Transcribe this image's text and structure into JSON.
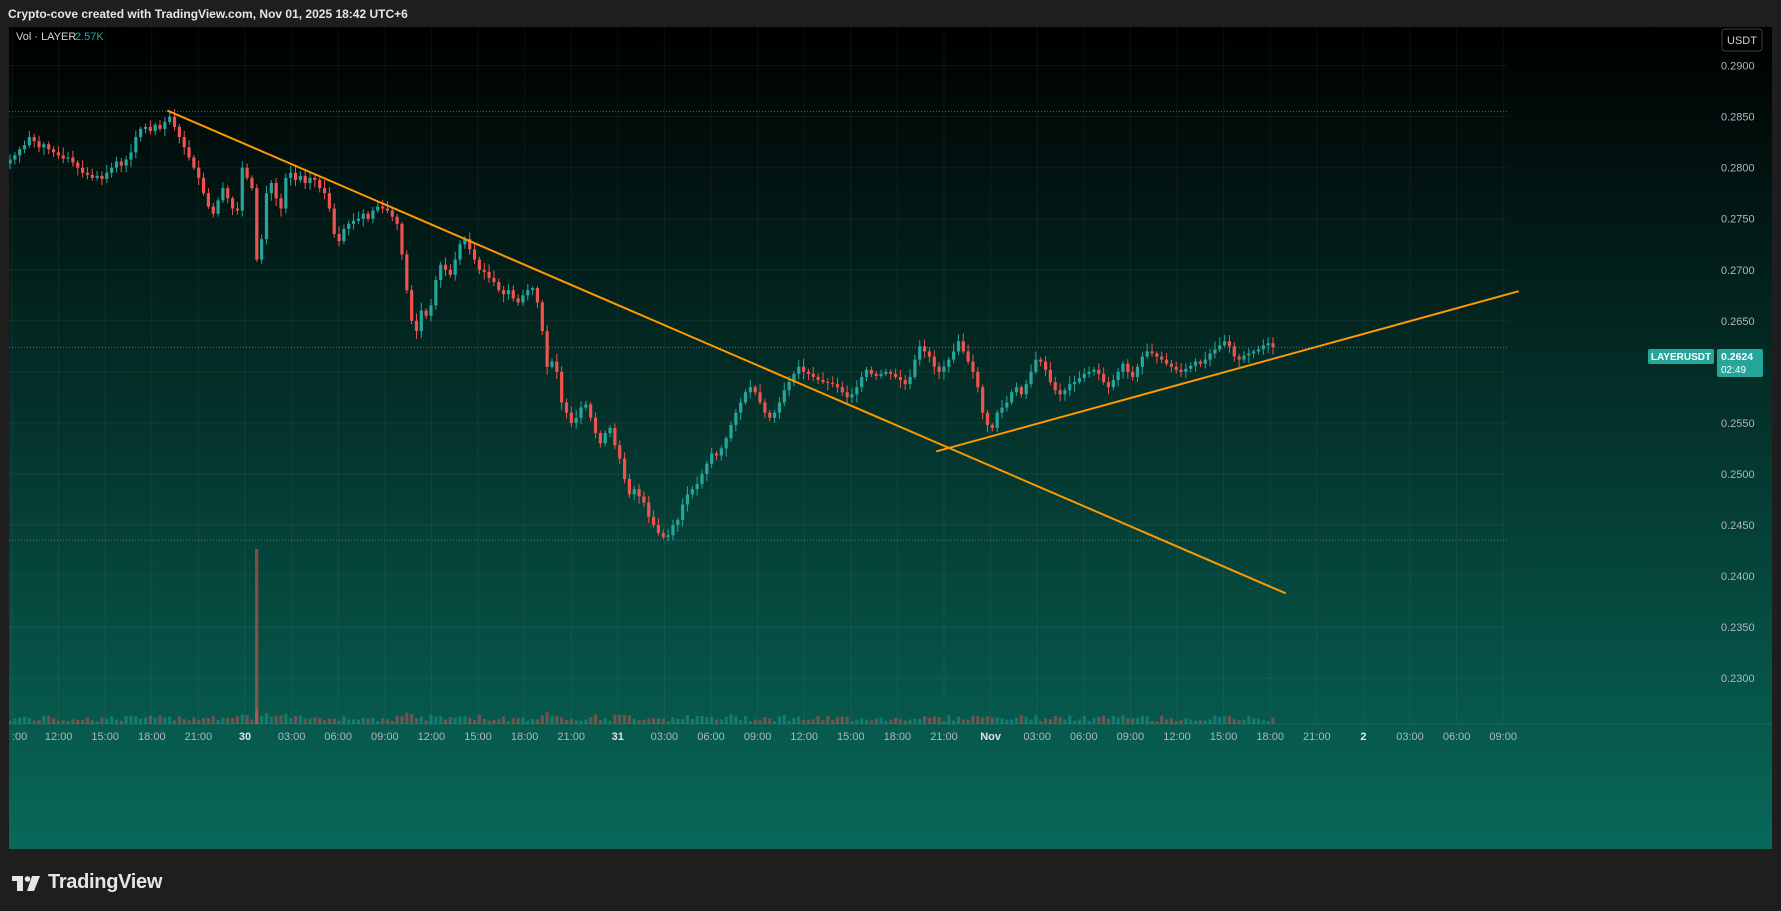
{
  "header": {
    "attribution": "Crypto-cove created with TradingView.com, Nov 01, 2025 18:42 UTC+6"
  },
  "legend": {
    "label": "Vol · LAYER",
    "value": "2.57K",
    "value_color": "#26a69a"
  },
  "currency_button": "USDT",
  "symbol_badge": {
    "symbol": "LAYERUSDT",
    "price": "0.2624",
    "countdown": "02:49",
    "color": "#26a69a"
  },
  "footer": {
    "brand": "TradingView"
  },
  "colors": {
    "up": "#26a69a",
    "down": "#ef5350",
    "trendline": "#ff9800",
    "bg_top": "#000000",
    "bg_bottom": "#08695a"
  },
  "icons": [
    "tradingview-logo-icon"
  ],
  "chart_data": {
    "type": "candlestick",
    "symbol": "LAYERUSDT",
    "interval_minutes": 15,
    "ylim": [
      0.2255,
      0.293
    ],
    "y_ticks": [
      "0.2900",
      "0.2850",
      "0.2800",
      "0.2750",
      "0.2700",
      "0.2650",
      "0.2600",
      "0.2550",
      "0.2500",
      "0.2450",
      "0.2400",
      "0.2350",
      "0.2300"
    ],
    "x_ticks": [
      ":00",
      "12:00",
      "15:00",
      "18:00",
      "21:00",
      "30",
      "03:00",
      "06:00",
      "09:00",
      "12:00",
      "15:00",
      "18:00",
      "21:00",
      "31",
      "03:00",
      "06:00",
      "09:00",
      "12:00",
      "15:00",
      "18:00",
      "21:00",
      "Nov",
      "03:00",
      "06:00",
      "09:00",
      "12:00",
      "15:00",
      "18:00",
      "21:00",
      "2",
      "03:00",
      "06:00",
      "09:00"
    ],
    "x_tick_bold": [
      5,
      13,
      21,
      29
    ],
    "horizontal_levels": [
      0.2855,
      0.2624,
      0.2435
    ],
    "trendlines": [
      {
        "from": [
          "Oct 29 19:00",
          0.2856
        ],
        "to": [
          "Nov 1 19:00",
          0.2383
        ]
      },
      {
        "from": [
          "Oct 31 20:30",
          0.2522
        ],
        "to": [
          "Nov 2 10:00",
          0.2679
        ]
      }
    ],
    "closes": [
      0.2808,
      0.2812,
      0.2818,
      0.2822,
      0.283,
      0.2826,
      0.282,
      0.2823,
      0.2818,
      0.2815,
      0.2812,
      0.2809,
      0.281,
      0.2805,
      0.28,
      0.2795,
      0.2793,
      0.279,
      0.2792,
      0.2789,
      0.2795,
      0.28,
      0.2806,
      0.2802,
      0.2808,
      0.2815,
      0.283,
      0.2838,
      0.284,
      0.2836,
      0.2842,
      0.2838,
      0.2845,
      0.285,
      0.284,
      0.283,
      0.282,
      0.281,
      0.28,
      0.279,
      0.2775,
      0.2762,
      0.2755,
      0.2768,
      0.278,
      0.277,
      0.276,
      0.2758,
      0.28,
      0.279,
      0.278,
      0.271,
      0.273,
      0.2775,
      0.2785,
      0.277,
      0.276,
      0.279,
      0.2795,
      0.2788,
      0.2792,
      0.2785,
      0.279,
      0.2788,
      0.278,
      0.2775,
      0.276,
      0.2735,
      0.2728,
      0.274,
      0.2745,
      0.2748,
      0.275,
      0.2755,
      0.275,
      0.2758,
      0.2762,
      0.276,
      0.2758,
      0.2752,
      0.2745,
      0.2715,
      0.268,
      0.265,
      0.264,
      0.266,
      0.2655,
      0.2665,
      0.269,
      0.2705,
      0.27,
      0.2695,
      0.271,
      0.2725,
      0.273,
      0.272,
      0.271,
      0.27,
      0.2698,
      0.2692,
      0.2688,
      0.268,
      0.2676,
      0.268,
      0.2672,
      0.2668,
      0.2675,
      0.268,
      0.2682,
      0.2668,
      0.264,
      0.2605,
      0.261,
      0.26,
      0.257,
      0.256,
      0.255,
      0.2555,
      0.2565,
      0.2568,
      0.2555,
      0.254,
      0.253,
      0.254,
      0.2545,
      0.2528,
      0.2515,
      0.2495,
      0.248,
      0.2485,
      0.2478,
      0.2472,
      0.2458,
      0.245,
      0.2442,
      0.2438,
      0.244,
      0.245,
      0.2455,
      0.247,
      0.248,
      0.2485,
      0.249,
      0.25,
      0.251,
      0.252,
      0.2518,
      0.2525,
      0.2535,
      0.2548,
      0.256,
      0.257,
      0.258,
      0.2585,
      0.258,
      0.257,
      0.256,
      0.2555,
      0.256,
      0.257,
      0.2582,
      0.259,
      0.2598,
      0.2605,
      0.26,
      0.2598,
      0.2595,
      0.2592,
      0.259,
      0.2589,
      0.2588,
      0.2585,
      0.258,
      0.2575,
      0.2578,
      0.2585,
      0.2595,
      0.2602,
      0.2598,
      0.2596,
      0.2598,
      0.26,
      0.2598,
      0.2595,
      0.2592,
      0.2588,
      0.2595,
      0.2612,
      0.2625,
      0.262,
      0.2615,
      0.2605,
      0.26,
      0.2605,
      0.2612,
      0.262,
      0.263,
      0.262,
      0.261,
      0.26,
      0.2585,
      0.256,
      0.2548,
      0.2545,
      0.256,
      0.2565,
      0.257,
      0.258,
      0.2585,
      0.2578,
      0.2588,
      0.26,
      0.2612,
      0.261,
      0.2602,
      0.259,
      0.2582,
      0.2578,
      0.2582,
      0.2588,
      0.259,
      0.2594,
      0.2598,
      0.26,
      0.2602,
      0.2598,
      0.259,
      0.2585,
      0.2592,
      0.26,
      0.2608,
      0.26,
      0.2595,
      0.2605,
      0.2615,
      0.262,
      0.2618,
      0.2615,
      0.2612,
      0.2608,
      0.2605,
      0.2602,
      0.26,
      0.2603,
      0.2606,
      0.261,
      0.2608,
      0.2612,
      0.2618,
      0.2622,
      0.2626,
      0.263,
      0.2625,
      0.2615,
      0.2612,
      0.2616,
      0.2618,
      0.262,
      0.2622,
      0.2626,
      0.2628,
      0.2624
    ],
    "volume_spike": {
      "date": "Oct 30 00:45",
      "label": "largest volume bar"
    }
  }
}
